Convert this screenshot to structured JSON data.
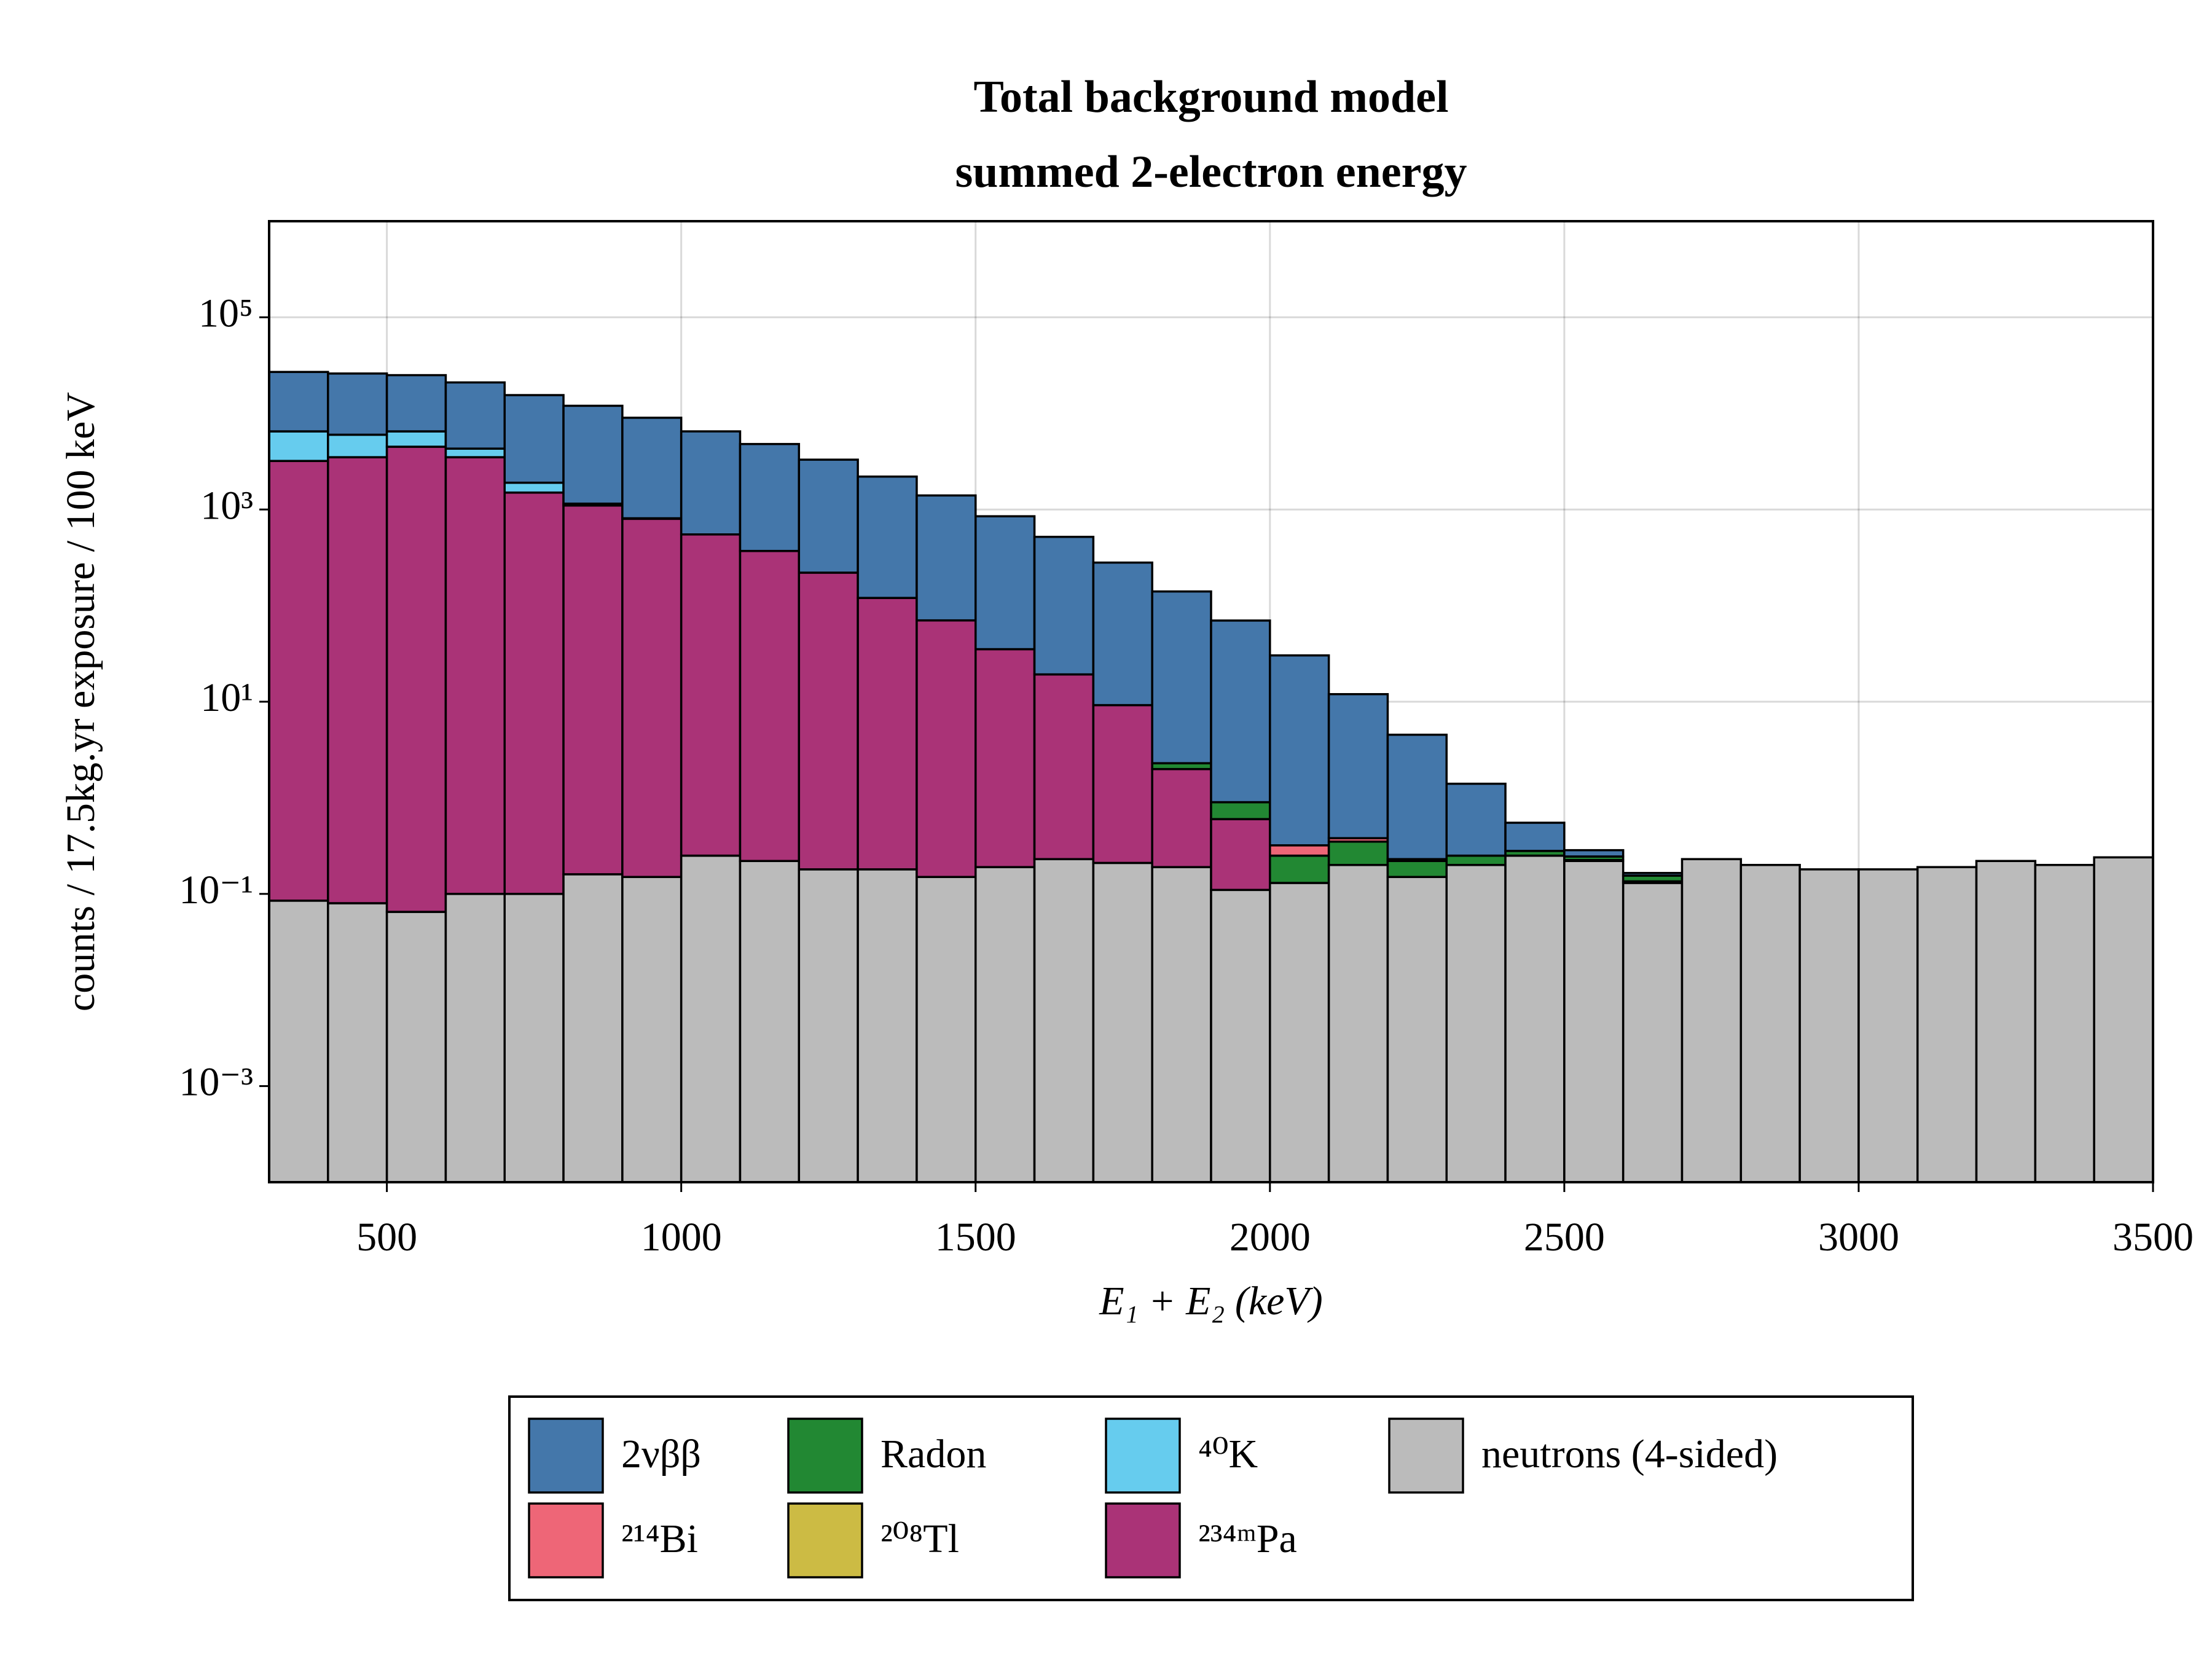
{
  "chart_data": {
    "type": "stacked-histogram",
    "title": "Total background model",
    "subtitle": "summed 2-electron energy",
    "x_label": "E₁ + E₂ (keV)",
    "y_label": "counts / 17.5kg.yr exposure / 100 keV",
    "log_y": true,
    "grid": true,
    "bins": [
      300,
      400,
      500,
      600,
      700,
      800,
      900,
      1000,
      1100,
      1200,
      1300,
      1400,
      1500,
      1600,
      1700,
      1800,
      1900,
      2000,
      2100,
      2200,
      2300,
      2400,
      2500,
      2600,
      2700,
      2800,
      2900,
      3000,
      3100,
      3200,
      3300,
      3400,
      3500
    ],
    "xlim": [
      300,
      3500
    ],
    "xticks": [
      500,
      1000,
      1500,
      2000,
      2500,
      3000,
      3500
    ],
    "ylim": [
      0.0001,
      1000000
    ],
    "yticks": [
      {
        "value": 0.001,
        "label": "10⁻³"
      },
      {
        "value": 0.1,
        "label": "10⁻¹"
      },
      {
        "value": 10,
        "label": "10¹"
      },
      {
        "value": 1000,
        "label": "10³"
      },
      {
        "value": 100000,
        "label": "10⁵"
      }
    ],
    "series": [
      {
        "name": "2νββ",
        "color": "#4477aa",
        "values": [
          20500,
          20000,
          18500,
          16700,
          13600,
          10850,
          8200,
          5950,
          4430,
          3080,
          2080,
          1330,
          815,
          500,
          271,
          138,
          69,
          30,
          11.6,
          4.3,
          1.15,
          0.27,
          0.04,
          0.01,
          0,
          0,
          0,
          0,
          0,
          0,
          0,
          0
        ]
      },
      {
        "name": "²¹⁴Bi",
        "color": "#ee6677",
        "values": [
          0,
          0,
          0,
          0,
          0,
          0,
          0,
          0,
          0,
          0,
          0,
          0,
          0,
          0,
          0,
          0,
          0,
          0.07,
          0.03,
          0.01,
          0,
          0,
          0,
          0,
          0,
          0,
          0,
          0,
          0,
          0,
          0,
          0
        ]
      },
      {
        "name": "Radon",
        "color": "#228833",
        "values": [
          0,
          0,
          0,
          0,
          0,
          0,
          0,
          0,
          0,
          0,
          0,
          0,
          0,
          0,
          0,
          0.3,
          0.3,
          0.12,
          0.15,
          0.07,
          0.05,
          0.03,
          0.02,
          0.02,
          0,
          0,
          0,
          0,
          0,
          0,
          0,
          0
        ]
      },
      {
        "name": "²⁰⁸Tl",
        "color": "#ccbb44",
        "values": [
          0,
          0,
          0,
          0,
          0,
          0,
          0,
          0,
          0,
          0,
          0,
          0,
          0,
          0,
          0,
          0,
          0,
          0,
          0,
          0,
          0,
          0,
          0.005,
          0.005,
          0,
          0,
          0,
          0,
          0,
          0,
          0,
          0
        ]
      },
      {
        "name": "⁴⁰K",
        "color": "#66ccee",
        "values": [
          3300,
          2500,
          2000,
          800,
          400,
          50,
          10,
          0,
          0,
          0,
          0,
          0,
          0,
          0,
          0,
          0,
          0,
          0,
          0,
          0,
          0,
          0,
          0,
          0,
          0,
          0,
          0,
          0,
          0,
          0,
          0,
          0
        ]
      },
      {
        "name": "²³⁴ᵐPa",
        "color": "#aa3377",
        "values": [
          3200,
          3500,
          4500,
          3500,
          1500,
          1100,
          800,
          550,
          370,
          220,
          120,
          70,
          35,
          19,
          9,
          1.8,
          0.49,
          0,
          0,
          0,
          0,
          0,
          0,
          0,
          0,
          0,
          0,
          0,
          0,
          0,
          0,
          0
        ]
      },
      {
        "name": "neutrons (4-sided)",
        "color": "#bbbbbb",
        "values": [
          0.085,
          0.08,
          0.065,
          0.1,
          0.1,
          0.16,
          0.15,
          0.25,
          0.22,
          0.18,
          0.18,
          0.15,
          0.19,
          0.23,
          0.21,
          0.19,
          0.11,
          0.13,
          0.2,
          0.15,
          0.2,
          0.25,
          0.22,
          0.13,
          0.23,
          0.2,
          0.18,
          0.18,
          0.19,
          0.22,
          0.2,
          0.24
        ]
      }
    ]
  }
}
